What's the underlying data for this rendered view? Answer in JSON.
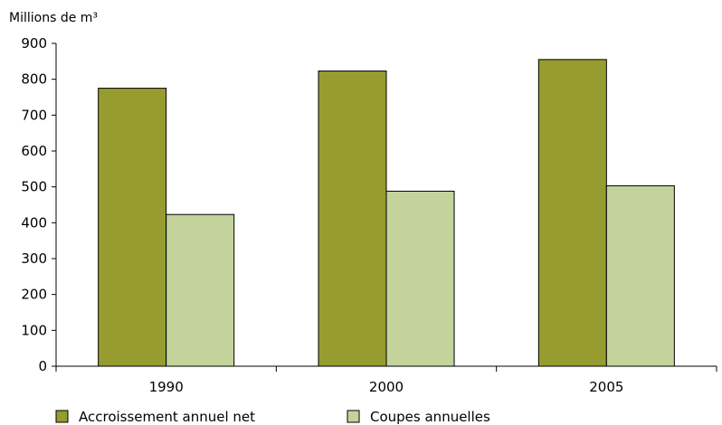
{
  "chart_data": {
    "type": "bar",
    "ylabel": "Millions de m³",
    "categories": [
      "1990",
      "2000",
      "2005"
    ],
    "series": [
      {
        "name": "Accroissement annuel net",
        "values": [
          775,
          823,
          855
        ],
        "color": "#969c2f"
      },
      {
        "name": "Coupes annuelles",
        "values": [
          423,
          488,
          503
        ],
        "color": "#c4d39c"
      }
    ],
    "ylim": [
      0,
      900
    ],
    "yticks": [
      0,
      100,
      200,
      300,
      400,
      500,
      600,
      700,
      800,
      900
    ],
    "grid": false,
    "legend_position": "bottom-left"
  }
}
